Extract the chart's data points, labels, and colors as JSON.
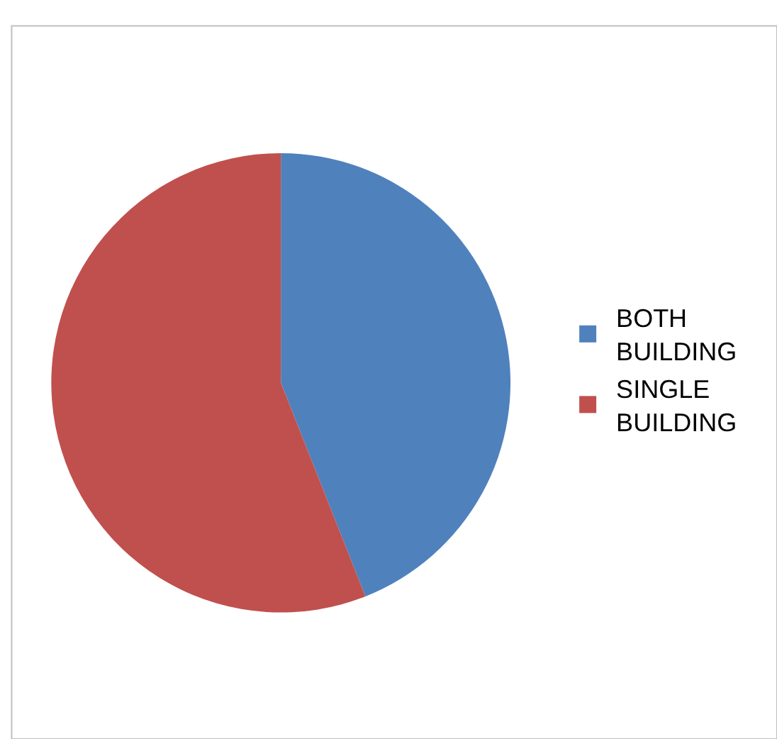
{
  "chart_data": {
    "type": "pie",
    "categories": [
      "BOTH BUILDING",
      "SINGLE BUILDING"
    ],
    "values": [
      44,
      56
    ],
    "colors": [
      "#4f81bd",
      "#c0504d"
    ],
    "legend": "right"
  }
}
